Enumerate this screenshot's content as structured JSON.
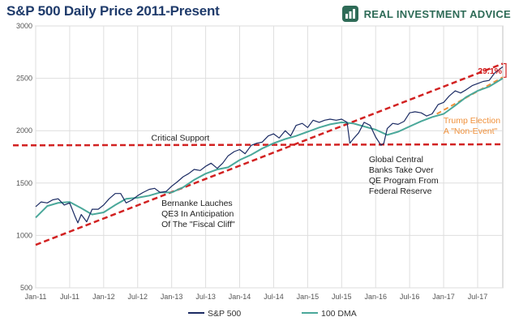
{
  "title": "S&P 500 Daily Price 2011-Present",
  "brand": {
    "name": "REAL INVESTMENT ADVICE",
    "logo_icon": "bar-chart-logo-icon"
  },
  "colors": {
    "price": "#1b2b63",
    "dma": "#4aa89a",
    "trend": "#d22222",
    "trump": "#f0903a",
    "grid": "#dedede",
    "title": "#1f3b6b",
    "brand": "#2e6b57"
  },
  "chart_data": {
    "type": "line",
    "title": "S&P 500 Daily Price 2011-Present",
    "xlabel": "",
    "ylabel": "",
    "xlim": [
      2011.0,
      2017.87
    ],
    "ylim": [
      500,
      3000
    ],
    "grid": true,
    "legend_position": "bottom",
    "y_ticks": [
      500,
      1000,
      1500,
      2000,
      2500,
      3000
    ],
    "y_tick_labels": [
      "500",
      "1000",
      "1500",
      "2000",
      "2500",
      "3000"
    ],
    "x_ticks": [
      2011.0,
      2011.5,
      2012.0,
      2012.5,
      2013.0,
      2013.5,
      2014.0,
      2014.5,
      2015.0,
      2015.5,
      2016.0,
      2016.5,
      2017.0,
      2017.5
    ],
    "x_tick_labels": [
      "Jan-11",
      "Jul-11",
      "Jan-12",
      "Jul-12",
      "Jan-13",
      "Jul-13",
      "Jan-14",
      "Jul-14",
      "Jan-15",
      "Jul-15",
      "Jan-16",
      "Jul-16",
      "Jan-17",
      "Jul-17"
    ],
    "series": [
      {
        "name": "S&P 500",
        "x": [
          2011.0,
          2011.08,
          2011.17,
          2011.25,
          2011.33,
          2011.42,
          2011.5,
          2011.58,
          2011.62,
          2011.67,
          2011.75,
          2011.83,
          2011.92,
          2012.0,
          2012.08,
          2012.17,
          2012.25,
          2012.33,
          2012.42,
          2012.5,
          2012.58,
          2012.67,
          2012.75,
          2012.83,
          2012.92,
          2013.0,
          2013.08,
          2013.17,
          2013.25,
          2013.33,
          2013.42,
          2013.5,
          2013.58,
          2013.67,
          2013.75,
          2013.83,
          2013.92,
          2014.0,
          2014.08,
          2014.17,
          2014.25,
          2014.33,
          2014.42,
          2014.5,
          2014.58,
          2014.67,
          2014.75,
          2014.83,
          2014.92,
          2015.0,
          2015.08,
          2015.17,
          2015.25,
          2015.33,
          2015.42,
          2015.5,
          2015.58,
          2015.62,
          2015.67,
          2015.75,
          2015.83,
          2015.92,
          2016.0,
          2016.08,
          2016.12,
          2016.17,
          2016.25,
          2016.33,
          2016.42,
          2016.5,
          2016.58,
          2016.67,
          2016.75,
          2016.83,
          2016.92,
          2017.0,
          2017.08,
          2017.17,
          2017.25,
          2017.33,
          2017.42,
          2017.5,
          2017.58,
          2017.67,
          2017.75,
          2017.83,
          2017.87
        ],
        "y": [
          1275,
          1320,
          1310,
          1340,
          1350,
          1290,
          1310,
          1180,
          1120,
          1200,
          1130,
          1250,
          1250,
          1290,
          1350,
          1400,
          1400,
          1310,
          1340,
          1380,
          1410,
          1440,
          1450,
          1410,
          1420,
          1470,
          1510,
          1560,
          1590,
          1630,
          1620,
          1660,
          1690,
          1640,
          1690,
          1760,
          1800,
          1820,
          1780,
          1860,
          1880,
          1890,
          1950,
          1970,
          1930,
          2000,
          1950,
          2050,
          2070,
          2030,
          2100,
          2080,
          2100,
          2110,
          2100,
          2110,
          2080,
          1880,
          1920,
          1980,
          2080,
          2050,
          1940,
          1860,
          1880,
          2020,
          2070,
          2060,
          2090,
          2170,
          2180,
          2170,
          2140,
          2160,
          2250,
          2270,
          2330,
          2380,
          2360,
          2390,
          2430,
          2450,
          2470,
          2480,
          2550,
          2590,
          2610
        ]
      },
      {
        "name": "100 DMA",
        "x": [
          2011.0,
          2011.17,
          2011.33,
          2011.5,
          2011.67,
          2011.83,
          2012.0,
          2012.17,
          2012.33,
          2012.5,
          2012.67,
          2012.83,
          2013.0,
          2013.17,
          2013.33,
          2013.5,
          2013.67,
          2013.83,
          2014.0,
          2014.17,
          2014.33,
          2014.5,
          2014.67,
          2014.83,
          2015.0,
          2015.17,
          2015.33,
          2015.5,
          2015.67,
          2015.83,
          2016.0,
          2016.17,
          2016.33,
          2016.5,
          2016.67,
          2016.83,
          2017.0,
          2017.17,
          2017.33,
          2017.5,
          2017.67,
          2017.87
        ],
        "y": [
          1170,
          1280,
          1310,
          1320,
          1260,
          1200,
          1220,
          1290,
          1350,
          1360,
          1380,
          1410,
          1410,
          1460,
          1530,
          1590,
          1630,
          1650,
          1720,
          1770,
          1830,
          1880,
          1920,
          1950,
          1990,
          2030,
          2060,
          2080,
          2070,
          2040,
          2010,
          1960,
          1990,
          2040,
          2090,
          2130,
          2160,
          2240,
          2320,
          2380,
          2420,
          2500
        ]
      }
    ],
    "overlays": {
      "upper_trend": {
        "x": [
          2011.0,
          2017.87
        ],
        "y": [
          910,
          2640
        ]
      },
      "critical_support": {
        "x": [
          2011.0,
          2017.87
        ],
        "y": [
          1860,
          1870
        ]
      },
      "trump_trend": {
        "x": [
          2016.9,
          2017.87
        ],
        "y": [
          2160,
          2510
        ]
      },
      "bracket_range": [
        2510,
        2640
      ]
    },
    "annotations": {
      "critical_support": "Critical Support",
      "bernanke": [
        "Bernanke Lauches",
        "QE3 In Anticipation",
        "Of The \"Fiscal Cliff\""
      ],
      "global_banks": [
        "Global Central",
        "Banks Take Over",
        "QE Program From",
        "Federal Reserve"
      ],
      "trump": [
        "Trump Election",
        "A \"Non-Event\""
      ],
      "percent": "29.1%"
    }
  }
}
